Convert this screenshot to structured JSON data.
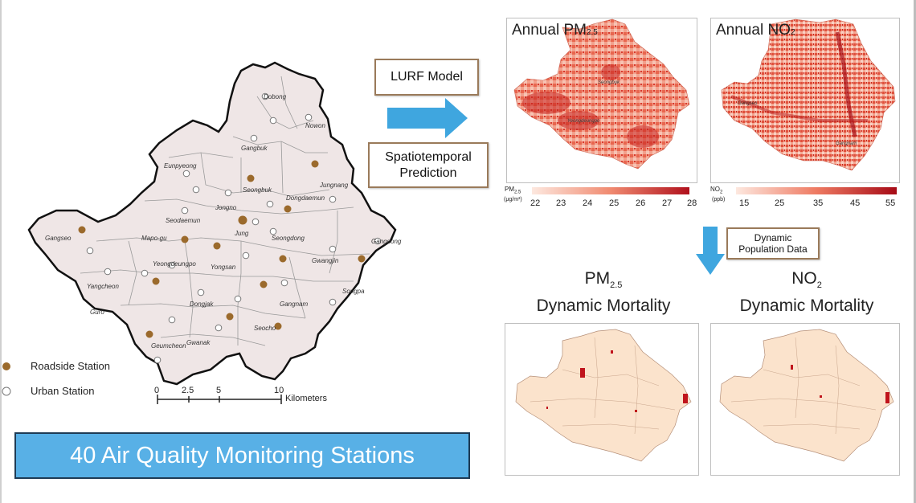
{
  "banner": {
    "text": "40 Air Quality Monitoring Stations"
  },
  "legend": {
    "roadside": "Roadside Station",
    "urban": "Urban Station"
  },
  "scalebar": {
    "ticks": [
      "0",
      "2.5",
      "5",
      "10"
    ],
    "unit": "Kilometers"
  },
  "flow": {
    "model_label": "LURF Model",
    "prediction_label_1": "Spatiotemporal",
    "prediction_label_2": "Prediction",
    "population_label_1": "Dynamic",
    "population_label_2": "Population Data"
  },
  "panels": {
    "pm25": {
      "title": "Annual PM",
      "title_sub": "2.5",
      "cbar_label": "PM",
      "cbar_sub": "2.5",
      "cbar_unit": "(μg/m³)",
      "cbar_ticks": [
        "22",
        "23",
        "24",
        "25",
        "26",
        "27",
        "28"
      ]
    },
    "no2": {
      "title": "Annual NO",
      "title_sub": "2",
      "cbar_label": "NO",
      "cbar_sub": "2",
      "cbar_unit": "(ppb)",
      "cbar_ticks": [
        "15",
        "25",
        "35",
        "45",
        "55"
      ]
    }
  },
  "mortality": {
    "pm25": {
      "line1": "PM",
      "line1_sub": "2.5",
      "line2": "Dynamic Mortality"
    },
    "no2": {
      "line1": "NO",
      "line1_sub": "2",
      "line2": "Dynamic Mortality"
    }
  },
  "districts": [
    "Dobong",
    "Nowon",
    "Gangbuk",
    "Eunpyeong",
    "Seongbuk",
    "Jungnang",
    "Dongdaemun",
    "Seodaemun",
    "Jongno",
    "Jung",
    "Gangseo",
    "Mapo-gu",
    "Seongdong",
    "Gwangjin",
    "Gangdong",
    "Yeongdeungpo",
    "Yongsan",
    "Yangcheon",
    "Guro",
    "Dongjak",
    "Gangnam",
    "Songpa",
    "Seocho",
    "Gwanak",
    "Geumcheon"
  ],
  "map_inset_labels": {
    "pm_city": "Seongbuk",
    "pm_city2": "Yeongdeungpo",
    "no2_city": "Gangseo",
    "no2_city2": "Gangnam"
  }
}
